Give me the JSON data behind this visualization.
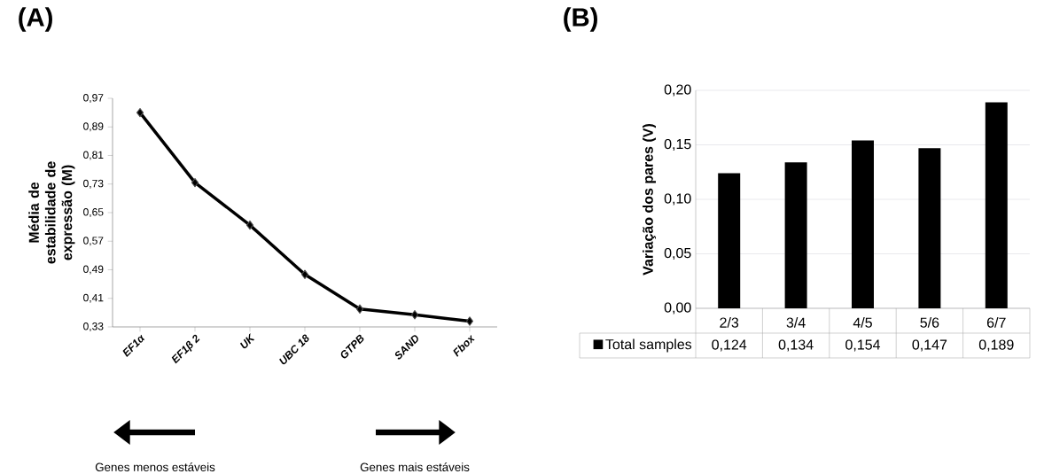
{
  "chart_data": [
    {
      "type": "line",
      "title": "(A)",
      "ylabel": "Média de estabilidade de expressão (M)",
      "categories": [
        "EF1α",
        "EF1β 2",
        "UK",
        "UBC 18",
        "GTPB",
        "SAND",
        "Fbox"
      ],
      "values": [
        0.93,
        0.734,
        0.615,
        0.477,
        0.38,
        0.364,
        0.346
      ],
      "color": "#000000",
      "marker": "diamond",
      "ylim": [
        0.33,
        0.97
      ],
      "yticks": [
        {
          "value": 0.33,
          "label": "0,33"
        },
        {
          "value": 0.41,
          "label": "0,41"
        },
        {
          "value": 0.49,
          "label": "0,49"
        },
        {
          "value": 0.57,
          "label": "0,57"
        },
        {
          "value": 0.65,
          "label": "0,65"
        },
        {
          "value": 0.73,
          "label": "0,73"
        },
        {
          "value": 0.81,
          "label": "0,81"
        },
        {
          "value": 0.89,
          "label": "0,89"
        },
        {
          "value": 0.97,
          "label": "0,97"
        }
      ],
      "annotations": [
        "Genes menos estáveis",
        "Genes mais estáveis"
      ]
    },
    {
      "type": "bar",
      "title": "(B)",
      "ylabel": "Variação dos pares (V)",
      "categories": [
        "2/3",
        "3/4",
        "4/5",
        "5/6",
        "6/7"
      ],
      "series": [
        {
          "name": "Total samples",
          "color": "#000000",
          "values": [
            0.124,
            0.134,
            0.154,
            0.147,
            0.189
          ],
          "value_labels": [
            "0,124",
            "0,134",
            "0,154",
            "0,147",
            "0,189"
          ]
        }
      ],
      "ylim": [
        0,
        0.2
      ],
      "yticks": [
        {
          "value": 0,
          "label": "0,00"
        },
        {
          "value": 0.05,
          "label": "0,05"
        },
        {
          "value": 0.1,
          "label": "0,10"
        },
        {
          "value": 0.15,
          "label": "0,15"
        },
        {
          "value": 0.2,
          "label": "0,20"
        }
      ],
      "grid": "y",
      "legend": "bottom"
    }
  ]
}
